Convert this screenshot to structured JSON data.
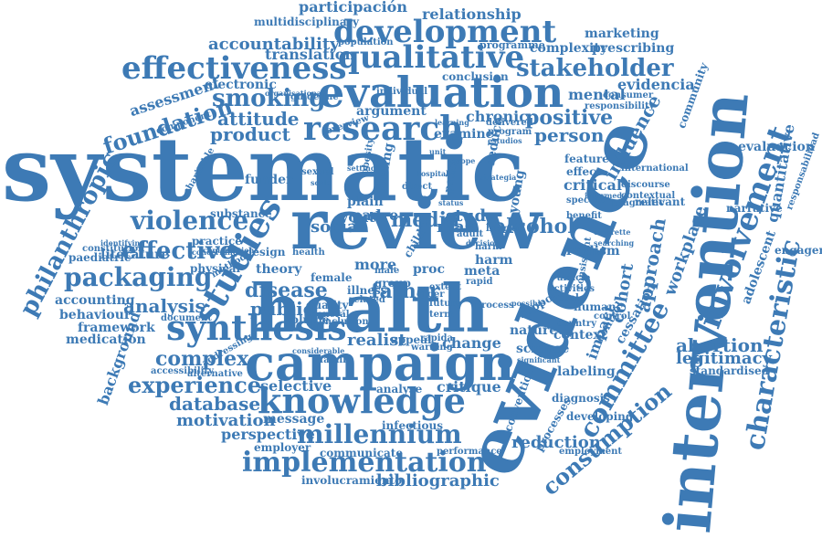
{
  "colors": {
    "word": "#3d7ab5",
    "background": "#ffffff"
  },
  "words": [
    "systematic",
    "review",
    "health",
    "evidence",
    "intervention",
    "campaign",
    "evaluation",
    "development",
    "studies",
    "knowledge",
    "synthesis",
    "research",
    "effectiveness",
    "qualitative",
    "stakeholder",
    "millennium",
    "implementation",
    "involvement",
    "characteristic",
    "committee",
    "consumption",
    "violence",
    "packaging",
    "effective",
    "experience",
    "philanthropic",
    "alcohol",
    "media",
    "smoking",
    "foundation",
    "attitude",
    "product",
    "disease",
    "father",
    "public",
    "positive",
    "person",
    "complex",
    "database",
    "motivation",
    "bibliographic",
    "reduction",
    "cohort",
    "approach",
    "workplace",
    "influence",
    "abortion",
    "legitimacy",
    "participación",
    "relationship",
    "multidisciplinary",
    "accountability",
    "translation",
    "population",
    "programme",
    "marketing",
    "complexity",
    "prescribing",
    "electronic",
    "evidencia",
    "mental",
    "assessment",
    "chronic",
    "conclusion",
    "argument",
    "examine",
    "critical",
    "young",
    "study",
    "social",
    "youth",
    "padre",
    "mas",
    "analysis",
    "accounting",
    "behaviour",
    "framework",
    "medication",
    "background",
    "selective",
    "perspective",
    "employer",
    "message",
    "communicate",
    "performance",
    "involucramiento",
    "critique",
    "change",
    "realist",
    "appeal",
    "theory",
    "design",
    "funder",
    "literature",
    "paediatric",
    "constitution",
    "substance",
    "practice",
    "physical",
    "document",
    "volume",
    "quality",
    "general",
    "illness",
    "related",
    "more",
    "proc",
    "meta",
    "harm",
    "rapid",
    "extent",
    "human",
    "context",
    "labeling",
    "impact",
    "cessation",
    "control",
    "evaluacion",
    "engagement",
    "quantitative",
    "relevant",
    "narrative",
    "adolescent",
    "standardised",
    "responsabilidad",
    "community",
    "responsibility",
    "science",
    "nature",
    "realism",
    "infectious",
    "developing",
    "diagnosis",
    "processes",
    "employment",
    "convention",
    "analyse",
    "accessibility",
    "alternative",
    "addressing",
    "harm",
    "plain",
    "finding",
    "policy",
    "reduce",
    "child",
    "component",
    "overview",
    "guideline",
    "individual",
    "learning",
    "effect",
    "benefit",
    "international",
    "discourse",
    "contextual",
    "feature",
    "pragmatic",
    "specific",
    "consistent",
    "control",
    "article",
    "activities",
    "tool",
    "identifying",
    "method",
    "concerning",
    "female",
    "male",
    "group",
    "order",
    "future",
    "term",
    "possible",
    "process",
    "warning",
    "rapida",
    "considerable",
    "cigarette",
    "searching",
    "informed",
    "significant",
    "country",
    "consumer",
    "delivered",
    "program",
    "estudios",
    "charitable",
    "setting",
    "barrier",
    "adult",
    "decision",
    "organisational",
    "contribution",
    "health",
    "inclusion",
    "estrategia",
    "unit",
    "scope",
    "status",
    "direct",
    "hospital",
    "obesity",
    "sexual",
    "scale",
    "support",
    "family"
  ]
}
